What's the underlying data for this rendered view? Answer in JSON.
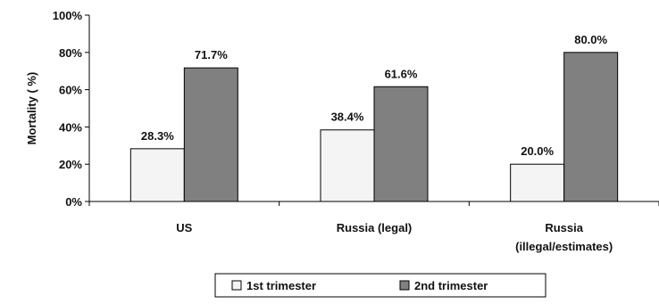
{
  "chart_data": {
    "type": "bar",
    "title": "",
    "xlabel": "",
    "ylabel": "Mortality ( %)",
    "ylim": [
      0,
      100
    ],
    "yticks": [
      "0%",
      "20%",
      "40%",
      "60%",
      "80%",
      "100%"
    ],
    "grid": false,
    "legend_position": "bottom",
    "categories": [
      [
        "US"
      ],
      [
        "Russia (legal)"
      ],
      [
        "Russia",
        "(illegal/estimates)"
      ]
    ],
    "series": [
      {
        "name": "1st trimester",
        "color": "#f4f4f4",
        "values": [
          28.3,
          38.4,
          20.0
        ],
        "labels": [
          "28.3%",
          "38.4%",
          "20.0%"
        ]
      },
      {
        "name": "2nd trimester",
        "color": "#808080",
        "values": [
          71.7,
          61.6,
          80.0
        ],
        "labels": [
          "71.7%",
          "61.6%",
          "80.0%"
        ]
      }
    ]
  }
}
